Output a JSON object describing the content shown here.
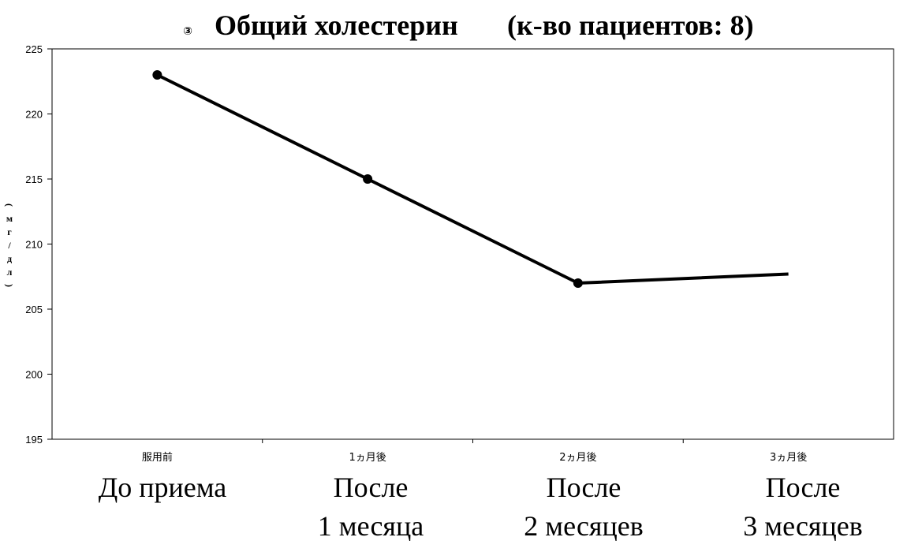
{
  "chart_data": {
    "type": "line",
    "title_mark": "③",
    "title": "Общий холестерин",
    "title_count": "(к-во пациентов: 8)",
    "ylabel": "(мг/дл)",
    "categories": [
      "服用前",
      "1ヵ月後",
      "2ヵ月後",
      "3ヵ月後"
    ],
    "category_labels": [
      [
        "До приема"
      ],
      [
        "После",
        "1 месяца"
      ],
      [
        "После",
        "2 месяцев"
      ],
      [
        "После",
        "3 месяцев"
      ]
    ],
    "series": [
      {
        "values": [
          223,
          215,
          207,
          207.7
        ],
        "color": "#000000"
      }
    ],
    "ylim": [
      195,
      225
    ],
    "yticks": [
      195,
      200,
      205,
      210,
      215,
      220,
      225
    ],
    "grid": false,
    "legend": "none"
  }
}
